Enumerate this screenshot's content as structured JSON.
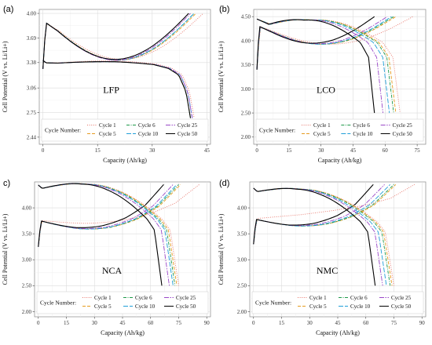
{
  "figure": {
    "legend_title": "Cycle Number:",
    "legend_placement": "bottom-left inside each panel",
    "grid": true,
    "cycles": [
      {
        "name": "Cycle 1",
        "color": "#E8756A",
        "dash": "1,1.6"
      },
      {
        "name": "Cycle 5",
        "color": "#E69B1F",
        "dash": "4,2"
      },
      {
        "name": "Cycle 6",
        "color": "#1E9A4A",
        "dash": "4,1.5,1,1.5"
      },
      {
        "name": "Cycle 10",
        "color": "#1F9ED8",
        "dash": "6,2"
      },
      {
        "name": "Cycle 25",
        "color": "#9A48C8",
        "dash": "6,1.5,1.5,1.5"
      },
      {
        "name": "Cycle 50",
        "color": "#000000",
        "dash": ""
      }
    ]
  },
  "chart_data": [
    {
      "type": "line",
      "panel_label": "(a)",
      "chemistry": "LFP",
      "xlabel": "Capacity (Ah/kg)",
      "ylabel": "Cell Potential (V vs. Li/Li+)",
      "xlim": [
        -1,
        46
      ],
      "ylim": [
        2.35,
        4.05
      ],
      "xticks": [
        0,
        15,
        30,
        45
      ],
      "yticks": [
        2.44,
        2.75,
        3.06,
        3.38,
        3.69,
        4.0
      ],
      "ytick_labels": [
        "2.44",
        "2.75",
        "3.06",
        "3.38",
        "3.69",
        "4.00"
      ],
      "charge": {
        "shape": [
          [
            0,
            0.0
          ],
          [
            0.02,
            0.88
          ],
          [
            0.1,
            0.92
          ],
          [
            0.5,
            0.93
          ],
          [
            0.75,
            0.945
          ],
          [
            0.85,
            0.96
          ],
          [
            0.92,
            0.975
          ],
          [
            0.97,
            0.99
          ],
          [
            1.0,
            1.0
          ]
        ],
        "series": [
          {
            "name": "Cycle 1",
            "x0": 0,
            "x1": 44,
            "v0": 3.3,
            "v1": 4.0,
            "vp": 3.42
          },
          {
            "name": "Cycle 5",
            "x0": 0,
            "x1": 42,
            "v0": 3.3,
            "v1": 4.0,
            "vp": 3.41
          },
          {
            "name": "Cycle 6",
            "x0": 0,
            "x1": 41.5,
            "v0": 3.3,
            "v1": 4.0,
            "vp": 3.41
          },
          {
            "name": "Cycle 10",
            "x0": 0,
            "x1": 41.5,
            "v0": 3.3,
            "v1": 4.0,
            "vp": 3.41
          },
          {
            "name": "Cycle 25",
            "x0": 0,
            "x1": 40.5,
            "v0": 3.3,
            "v1": 4.0,
            "vp": 3.41
          },
          {
            "name": "Cycle 50",
            "x0": 0,
            "x1": 40,
            "v0": 3.3,
            "v1": 4.0,
            "vp": 3.42
          }
        ]
      },
      "discharge": {
        "shape": [
          [
            0,
            0.0
          ],
          [
            0.02,
            0.05
          ],
          [
            0.1,
            0.07
          ],
          [
            0.5,
            0.09
          ],
          [
            0.75,
            0.12
          ],
          [
            0.85,
            0.17
          ],
          [
            0.92,
            0.27
          ],
          [
            0.97,
            0.55
          ],
          [
            1.0,
            1.0
          ]
        ],
        "series": [
          {
            "name": "Cycle 1",
            "x0": 0,
            "x1": 41.5,
            "v0": 3.41,
            "v1": 2.68,
            "vp": 3.4
          },
          {
            "name": "Cycle 5",
            "x0": 0,
            "x1": 40.5,
            "v0": 3.41,
            "v1": 2.68,
            "vp": 3.39
          },
          {
            "name": "Cycle 6",
            "x0": 0,
            "x1": 40.5,
            "v0": 3.41,
            "v1": 2.68,
            "vp": 3.39
          },
          {
            "name": "Cycle 10",
            "x0": 0,
            "x1": 41,
            "v0": 3.41,
            "v1": 2.68,
            "vp": 3.39
          },
          {
            "name": "Cycle 25",
            "x0": 0,
            "x1": 41,
            "v0": 3.41,
            "v1": 2.68,
            "vp": 3.39
          },
          {
            "name": "Cycle 50",
            "x0": 0,
            "x1": 40.5,
            "v0": 3.41,
            "v1": 2.68,
            "vp": 3.39
          }
        ]
      }
    },
    {
      "type": "line",
      "panel_label": "(b)",
      "chemistry": "LCO",
      "xlabel": "Capacity (Ah/kg)",
      "ylabel": "Cell Potential (V vs. Li/Li+)",
      "xlim": [
        -1.5,
        79
      ],
      "ylim": [
        1.85,
        4.65
      ],
      "xticks": [
        0,
        15,
        30,
        45,
        60,
        75
      ],
      "yticks": [
        2.0,
        2.5,
        3.0,
        3.5,
        4.0,
        4.5
      ],
      "ytick_labels": [
        "2.00",
        "2.50",
        "3.00",
        "3.50",
        "4.00",
        "4.50"
      ],
      "charge": {
        "shape": [
          [
            0,
            0.0
          ],
          [
            0.02,
            0.84
          ],
          [
            0.12,
            0.86
          ],
          [
            0.4,
            0.885
          ],
          [
            0.65,
            0.915
          ],
          [
            0.85,
            0.955
          ],
          [
            1.0,
            1.0
          ]
        ],
        "series": [
          {
            "name": "Cycle 1",
            "x0": 0,
            "x1": 73,
            "v0": 3.4,
            "v1": 4.5,
            "vp": 3.93
          },
          {
            "name": "Cycle 5",
            "x0": 0,
            "x1": 65,
            "v0": 3.4,
            "v1": 4.5,
            "vp": 3.93
          },
          {
            "name": "Cycle 6",
            "x0": 0,
            "x1": 64,
            "v0": 3.4,
            "v1": 4.5,
            "vp": 3.93
          },
          {
            "name": "Cycle 10",
            "x0": 0,
            "x1": 63,
            "v0": 3.4,
            "v1": 4.5,
            "vp": 3.93
          },
          {
            "name": "Cycle 25",
            "x0": 0,
            "x1": 61,
            "v0": 3.4,
            "v1": 4.5,
            "vp": 3.94
          },
          {
            "name": "Cycle 50",
            "x0": 0,
            "x1": 55,
            "v0": 3.4,
            "v1": 4.5,
            "vp": 3.95
          }
        ]
      },
      "discharge": {
        "shape": [
          [
            0,
            0.0
          ],
          [
            0.1,
            0.14
          ],
          [
            0.4,
            0.27
          ],
          [
            0.7,
            0.32
          ],
          [
            0.88,
            0.35
          ],
          [
            0.95,
            0.45
          ],
          [
            1.0,
            1.0
          ]
        ],
        "series": [
          {
            "name": "Cycle 1",
            "x0": 0,
            "x1": 67,
            "v0": 4.45,
            "v1": 2.5,
            "vp": 4.42
          },
          {
            "name": "Cycle 5",
            "x0": 0,
            "x1": 65,
            "v0": 4.45,
            "v1": 2.5,
            "vp": 4.42
          },
          {
            "name": "Cycle 6",
            "x0": 0,
            "x1": 64,
            "v0": 4.45,
            "v1": 2.5,
            "vp": 4.42
          },
          {
            "name": "Cycle 10",
            "x0": 0,
            "x1": 62,
            "v0": 4.45,
            "v1": 2.5,
            "vp": 4.42
          },
          {
            "name": "Cycle 25",
            "x0": 0,
            "x1": 59,
            "v0": 4.45,
            "v1": 2.5,
            "vp": 4.42
          },
          {
            "name": "Cycle 50",
            "x0": 0,
            "x1": 55,
            "v0": 4.45,
            "v1": 2.5,
            "vp": 4.42
          }
        ]
      }
    },
    {
      "type": "line",
      "panel_label": "c)",
      "chemistry": "NCA",
      "xlabel": "Capacity (Ah/kg)",
      "ylabel": "Cell Potential (V vs. Li/Li+)",
      "xlim": [
        -2,
        92
      ],
      "ylim": [
        1.9,
        4.5
      ],
      "xticks": [
        0,
        15,
        30,
        45,
        60,
        75,
        90
      ],
      "yticks": [
        2.0,
        2.5,
        3.0,
        3.5,
        4.0
      ],
      "ytick_labels": [
        "2.00",
        "2.50",
        "3.00",
        "3.50",
        "4.00"
      ],
      "charge": {
        "shape": [
          [
            0,
            0.0
          ],
          [
            0.02,
            0.43
          ],
          [
            0.1,
            0.45
          ],
          [
            0.3,
            0.5
          ],
          [
            0.5,
            0.57
          ],
          [
            0.7,
            0.66
          ],
          [
            0.85,
            0.77
          ],
          [
            1.0,
            1.0
          ]
        ],
        "series": [
          {
            "name": "Cycle 1",
            "x0": 0,
            "x1": 86,
            "v0": 3.25,
            "v1": 4.45,
            "vp": 3.75
          },
          {
            "name": "Cycle 5",
            "x0": 0,
            "x1": 76,
            "v0": 3.25,
            "v1": 4.45,
            "vp": 3.62
          },
          {
            "name": "Cycle 6",
            "x0": 0,
            "x1": 75,
            "v0": 3.25,
            "v1": 4.45,
            "vp": 3.62
          },
          {
            "name": "Cycle 10",
            "x0": 0,
            "x1": 74,
            "v0": 3.25,
            "v1": 4.45,
            "vp": 3.62
          },
          {
            "name": "Cycle 25",
            "x0": 0,
            "x1": 72,
            "v0": 3.25,
            "v1": 4.45,
            "vp": 3.63
          },
          {
            "name": "Cycle 50",
            "x0": 0,
            "x1": 67,
            "v0": 3.25,
            "v1": 4.45,
            "vp": 3.65
          }
        ]
      },
      "discharge": {
        "shape": [
          [
            0,
            0.0
          ],
          [
            0.03,
            0.06
          ],
          [
            0.15,
            0.13
          ],
          [
            0.35,
            0.24
          ],
          [
            0.55,
            0.32
          ],
          [
            0.75,
            0.39
          ],
          [
            0.88,
            0.44
          ],
          [
            0.94,
            0.5
          ],
          [
            1.0,
            1.0
          ]
        ],
        "series": [
          {
            "name": "Cycle 1",
            "x0": 0,
            "x1": 75,
            "v0": 4.44,
            "v1": 2.5,
            "vp": 4.4
          },
          {
            "name": "Cycle 5",
            "x0": 0,
            "x1": 74,
            "v0": 4.44,
            "v1": 2.5,
            "vp": 4.4
          },
          {
            "name": "Cycle 6",
            "x0": 0,
            "x1": 73,
            "v0": 4.44,
            "v1": 2.5,
            "vp": 4.4
          },
          {
            "name": "Cycle 10",
            "x0": 0,
            "x1": 72,
            "v0": 4.44,
            "v1": 2.5,
            "vp": 4.4
          },
          {
            "name": "Cycle 25",
            "x0": 0,
            "x1": 70,
            "v0": 4.44,
            "v1": 2.5,
            "vp": 4.4
          },
          {
            "name": "Cycle 50",
            "x0": 0,
            "x1": 66,
            "v0": 4.44,
            "v1": 2.5,
            "vp": 4.4
          }
        ]
      }
    },
    {
      "type": "line",
      "panel_label": "(d)",
      "chemistry": "NMC",
      "xlabel": "Capacity (Ah/kg)",
      "ylabel": "Cell Potential (V vs. Li/Li+)",
      "xlim": [
        -2,
        92
      ],
      "ylim": [
        1.9,
        4.5
      ],
      "xticks": [
        0,
        15,
        30,
        45,
        60,
        75,
        90
      ],
      "yticks": [
        2.0,
        2.5,
        3.0,
        3.5,
        4.0
      ],
      "ytick_labels": [
        "2.00",
        "2.50",
        "3.00",
        "3.50",
        "4.00"
      ],
      "charge": {
        "shape": [
          [
            0,
            0.0
          ],
          [
            0.02,
            0.43
          ],
          [
            0.1,
            0.45
          ],
          [
            0.3,
            0.5
          ],
          [
            0.5,
            0.57
          ],
          [
            0.7,
            0.66
          ],
          [
            0.85,
            0.77
          ],
          [
            1.0,
            1.0
          ]
        ],
        "series": [
          {
            "name": "Cycle 1",
            "x0": 0,
            "x1": 86,
            "v0": 3.3,
            "v1": 4.45,
            "vp": 3.95
          },
          {
            "name": "Cycle 5",
            "x0": 0,
            "x1": 76,
            "v0": 3.3,
            "v1": 4.45,
            "vp": 3.68
          },
          {
            "name": "Cycle 6",
            "x0": 0,
            "x1": 75,
            "v0": 3.3,
            "v1": 4.45,
            "vp": 3.68
          },
          {
            "name": "Cycle 10",
            "x0": 0,
            "x1": 73,
            "v0": 3.3,
            "v1": 4.45,
            "vp": 3.68
          },
          {
            "name": "Cycle 25",
            "x0": 0,
            "x1": 70,
            "v0": 3.3,
            "v1": 4.45,
            "vp": 3.69
          },
          {
            "name": "Cycle 50",
            "x0": 0,
            "x1": 64,
            "v0": 3.3,
            "v1": 4.45,
            "vp": 3.7
          }
        ]
      },
      "discharge": {
        "shape": [
          [
            0,
            0.0
          ],
          [
            0.03,
            0.06
          ],
          [
            0.15,
            0.13
          ],
          [
            0.35,
            0.24
          ],
          [
            0.55,
            0.32
          ],
          [
            0.75,
            0.39
          ],
          [
            0.88,
            0.44
          ],
          [
            0.94,
            0.5
          ],
          [
            1.0,
            1.0
          ]
        ],
        "series": [
          {
            "name": "Cycle 1",
            "x0": 0,
            "x1": 75,
            "v0": 4.38,
            "v1": 2.5,
            "vp": 4.3
          },
          {
            "name": "Cycle 5",
            "x0": 0,
            "x1": 74,
            "v0": 4.38,
            "v1": 2.5,
            "vp": 4.3
          },
          {
            "name": "Cycle 6",
            "x0": 0,
            "x1": 73,
            "v0": 4.38,
            "v1": 2.5,
            "vp": 4.3
          },
          {
            "name": "Cycle 10",
            "x0": 0,
            "x1": 71,
            "v0": 4.38,
            "v1": 2.5,
            "vp": 4.3
          },
          {
            "name": "Cycle 25",
            "x0": 0,
            "x1": 69,
            "v0": 4.38,
            "v1": 2.5,
            "vp": 4.3
          },
          {
            "name": "Cycle 50",
            "x0": 0,
            "x1": 65,
            "v0": 4.38,
            "v1": 2.5,
            "vp": 4.3
          }
        ]
      }
    }
  ]
}
